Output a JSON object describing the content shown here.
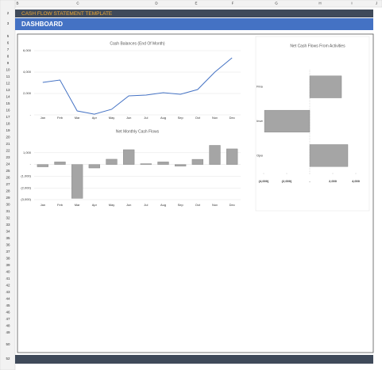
{
  "column_headers": [
    "B",
    "C",
    "D",
    "E",
    "F",
    "G",
    "H",
    "I",
    "J"
  ],
  "row_numbers": [
    2,
    3,
    5,
    6,
    7,
    8,
    9,
    10,
    11,
    12,
    13,
    14,
    15,
    16,
    17,
    18,
    19,
    20,
    21,
    22,
    23,
    24,
    25,
    26,
    27,
    28,
    29,
    30,
    31,
    32,
    33,
    34,
    35,
    36,
    37,
    38,
    39,
    40,
    41,
    42,
    43,
    44,
    45,
    46,
    47,
    48,
    49,
    50,
    52
  ],
  "header": {
    "title": "CASH FLOW STATEMENT TEMPLATE",
    "subtitle": "DASHBOARD"
  },
  "chart_data": [
    {
      "type": "line",
      "title": "Cash Balances (End Of Month)",
      "categories": [
        "Jan",
        "Feb",
        "Mar",
        "Apr",
        "May",
        "Jun",
        "Jul",
        "Aug",
        "Sep",
        "Oct",
        "Nov",
        "Dec"
      ],
      "values": [
        3040,
        3260,
        370,
        70,
        520,
        1780,
        1850,
        2070,
        1930,
        2370,
        4000,
        5330
      ],
      "color": "#4472c4",
      "ylim": [
        0,
        6000
      ],
      "yticks": [
        {
          "value": 0,
          "label": "-"
        },
        {
          "value": 2000,
          "label": "2,000"
        },
        {
          "value": 4000,
          "label": "4,000"
        },
        {
          "value": 6000,
          "label": "6,000"
        }
      ],
      "grid": true
    },
    {
      "type": "bar",
      "title": "Net Monthly Cash Flows",
      "categories": [
        "Jan",
        "Feb",
        "Mar",
        "Apr",
        "May",
        "Jun",
        "Jul",
        "Aug",
        "Sep",
        "Oct",
        "Nov",
        "Dec"
      ],
      "values": [
        -200,
        220,
        -2890,
        -300,
        450,
        1260,
        70,
        220,
        -140,
        440,
        1630,
        1330
      ],
      "color": "#a5a5a5",
      "ylim": [
        -3000,
        2000
      ],
      "yticks": [
        {
          "value": 1000,
          "label": "1,000"
        },
        {
          "value": 0,
          "label": "-"
        },
        {
          "value": -1000,
          "label": "(1,000)"
        },
        {
          "value": -2000,
          "label": "(2,000)"
        },
        {
          "value": -3000,
          "label": "(3,000)"
        }
      ],
      "grid": true
    },
    {
      "type": "hbar",
      "title": "Net Cash Flows From Activities",
      "categories": [
        "Financing Activities",
        "Investing Activities",
        "Operating Activities"
      ],
      "values": [
        2760,
        -3930,
        3310
      ],
      "color": "#a5a5a5",
      "xlim": [
        -4000,
        4000
      ],
      "xticks": [
        {
          "value": -4000,
          "label": "(4,000)"
        },
        {
          "value": -2000,
          "label": "(2,000)"
        },
        {
          "value": 0,
          "label": "-"
        },
        {
          "value": 2000,
          "label": "2,000"
        },
        {
          "value": 4000,
          "label": "4,000"
        }
      ]
    }
  ]
}
